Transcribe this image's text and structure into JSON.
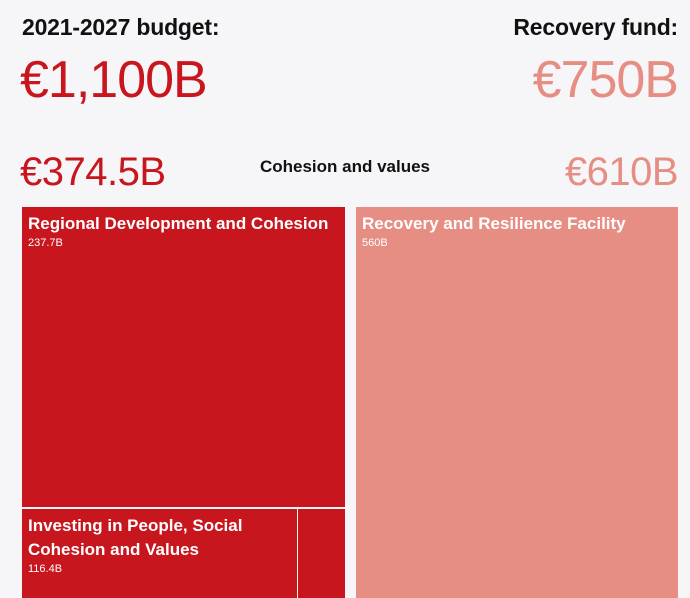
{
  "header": {
    "left_label": "2021-2027 budget:",
    "left_total": "€1,100B",
    "right_label": "Recovery fund:",
    "right_total": "€750B"
  },
  "section": {
    "title": "Cohesion and values",
    "left_total": "€374.5B",
    "right_total": "€610B"
  },
  "colors": {
    "budget": "#c8161e",
    "budget_dark": "#b11219",
    "recovery": "#e68e84",
    "background": "#f6f5f7"
  },
  "chart_data": {
    "type": "treemap",
    "title": "Cohesion and values",
    "groups": [
      {
        "name": "2021-2027 budget",
        "total": 374.5,
        "items": [
          {
            "name": "Regional Development and Cohesion",
            "value": 237.7,
            "label": "237.7B"
          },
          {
            "name": "Investing in People, Social Cohesion and Values",
            "value": 116.4,
            "label": "116.4B"
          }
        ]
      },
      {
        "name": "Recovery fund",
        "total": 610,
        "items": [
          {
            "name": "Recovery and Resilience Facility",
            "value": 560,
            "label": "560B"
          }
        ]
      }
    ],
    "unit": "€ billions"
  }
}
